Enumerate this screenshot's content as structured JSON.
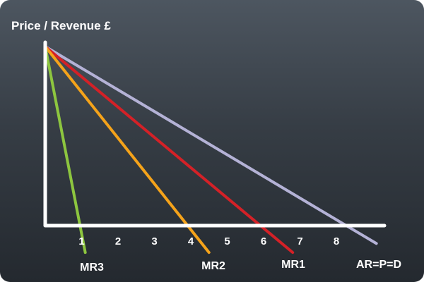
{
  "chart_data": {
    "type": "line",
    "ylabel": "Price / Revenue £",
    "xlabel": "",
    "x_ticks": [
      1,
      2,
      3,
      4,
      5,
      6,
      7,
      8
    ],
    "xlim": [
      0,
      9.5
    ],
    "grid": false,
    "series": [
      {
        "name": "AR=P=D",
        "color": "#b4b2d6",
        "points": [
          [
            0,
            1
          ],
          [
            9.1,
            -0.1
          ]
        ]
      },
      {
        "name": "MR1",
        "color": "#d42127",
        "points": [
          [
            0,
            1
          ],
          [
            6.8,
            -0.15
          ]
        ]
      },
      {
        "name": "MR2",
        "color": "#f5a31a",
        "points": [
          [
            0,
            1
          ],
          [
            4.5,
            -0.15
          ]
        ]
      },
      {
        "name": "MR3",
        "color": "#8dc63f",
        "points": [
          [
            0,
            1
          ],
          [
            1.1,
            -0.15
          ]
        ]
      }
    ]
  },
  "colors": {
    "axis": "#ffffff",
    "background_top": "#4d5660",
    "background_bottom": "#24292f"
  }
}
